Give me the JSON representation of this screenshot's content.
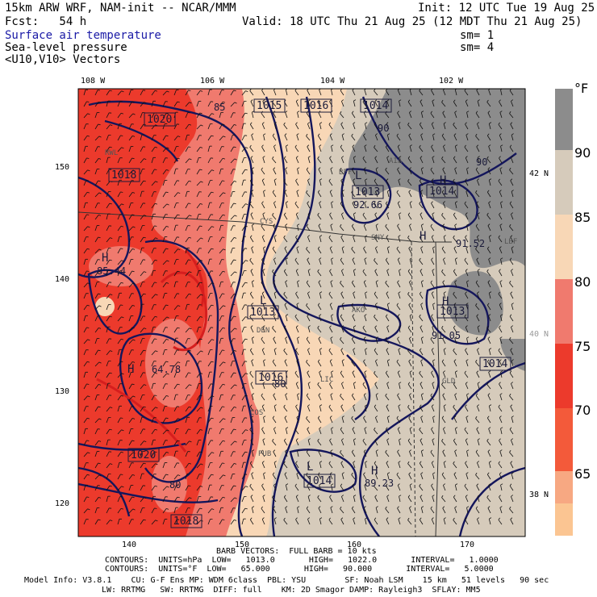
{
  "header": {
    "model": "15km ARW WRF, NAM-init -- NCAR/MMM",
    "init": "Init: 12 UTC Tue 19 Aug 25",
    "fcst": "Fcst:   54 h",
    "valid": "Valid: 18 UTC Thu 21 Aug 25 (12 MDT Thu 21 Aug 25)",
    "field1": "Surface air temperature",
    "field1_sm": "sm= 1",
    "field2": "Sea-level pressure",
    "field2_sm": "sm= 4",
    "field3": "<U10,V10> Vectors"
  },
  "axes": {
    "top_lon": [
      "108 W",
      "106 W",
      "104 W",
      "102 W"
    ],
    "right_lat": [
      "42 N",
      "40 N",
      "38 N"
    ],
    "left_grid": [
      "150",
      "140",
      "130",
      "120"
    ],
    "bottom_grid": [
      "140",
      "150",
      "160",
      "170"
    ]
  },
  "colorbar": {
    "unit": "°F",
    "labels": [
      "90",
      "85",
      "80",
      "75",
      "70",
      "65"
    ],
    "colors": [
      "#8c8c8c",
      "#d6cbbb",
      "#f8d7b6",
      "#f07a6e",
      "#ec3a2c",
      "#f35a3a",
      "#f7a882",
      "#fbc592"
    ]
  },
  "map_labels": {
    "pressure_boxes": [
      "1020",
      "1015",
      "1016",
      "1014",
      "1018",
      "1013",
      "1014",
      "1013",
      "1013",
      "1016",
      "1014",
      "1020",
      "1018",
      "1014"
    ],
    "highs_lows": [
      "H",
      "L",
      "H",
      "L",
      "H",
      "H",
      "L",
      "H",
      "H"
    ],
    "values": [
      "85.44",
      "92.66",
      "91.52",
      "91.05",
      "64.78",
      "89.23",
      "90",
      "90",
      "85",
      "80",
      "80"
    ],
    "cities": [
      "RWL",
      "CYS",
      "BFF",
      "AIA",
      "SNY",
      "LBF",
      "AKO",
      "DEN",
      "LIC",
      "GLD",
      "COS",
      "PUB"
    ]
  },
  "footer": {
    "barb": "BARB VECTORS:  FULL BARB = 10 kts",
    "contours_hpa": "CONTOURS:  UNITS=hPa  LOW=   1013.0       HIGH=   1022.0       INTERVAL=   1.0000",
    "contours_f": "CONTOURS:  UNITS=°F  LOW=   65.000       HIGH=   90.000       INTERVAL=   5.0000",
    "model_info": "Model Info: V3.8.1    CU: G-F Ens MP: WDM 6class  PBL: YSU        SF: Noah LSM    15 km   51 levels   90 sec",
    "model_info2": "LW: RRTMG   SW: RRTMG  DIFF: full    KM: 2D Smagor DAMP: Rayleigh3  SFLAY: MM5"
  }
}
